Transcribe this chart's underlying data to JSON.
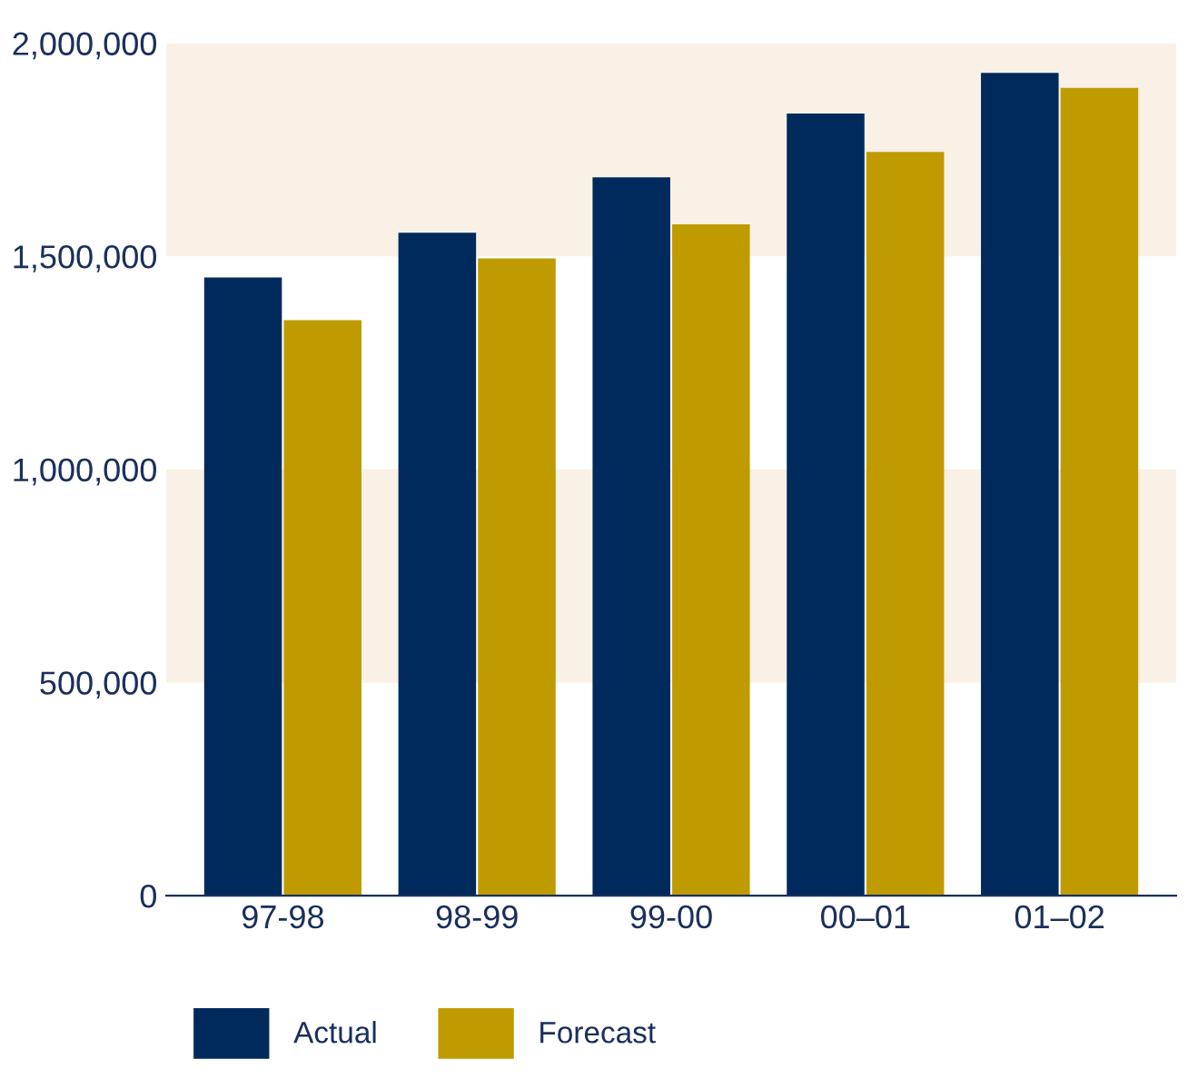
{
  "chart_data": {
    "type": "bar",
    "categories": [
      "97-98",
      "98-99",
      "99-00",
      "00–01",
      "01–02"
    ],
    "series": [
      {
        "name": "Actual",
        "color": "#002a5c",
        "values": [
          1450000,
          1555000,
          1685000,
          1835000,
          1930000
        ]
      },
      {
        "name": "Forecast",
        "color": "#bf9b00",
        "values": [
          1350000,
          1495000,
          1575000,
          1745000,
          1895000
        ]
      }
    ],
    "ylim": [
      0,
      2000000
    ],
    "yticks": [
      {
        "value": 0,
        "label": "0"
      },
      {
        "value": 500000,
        "label": "500,000"
      },
      {
        "value": 1000000,
        "label": "1,000,000"
      },
      {
        "value": 1500000,
        "label": "1,500,000"
      },
      {
        "value": 2000000,
        "label": "2,000,000"
      }
    ],
    "bands": [
      {
        "axis": "y",
        "from": 500000,
        "to": 1000000,
        "color": "#f9f1e5"
      },
      {
        "axis": "y",
        "from": 1500000,
        "to": 2000000,
        "color": "#f9f1e5"
      }
    ],
    "grid": false,
    "legend": "bottom left"
  }
}
